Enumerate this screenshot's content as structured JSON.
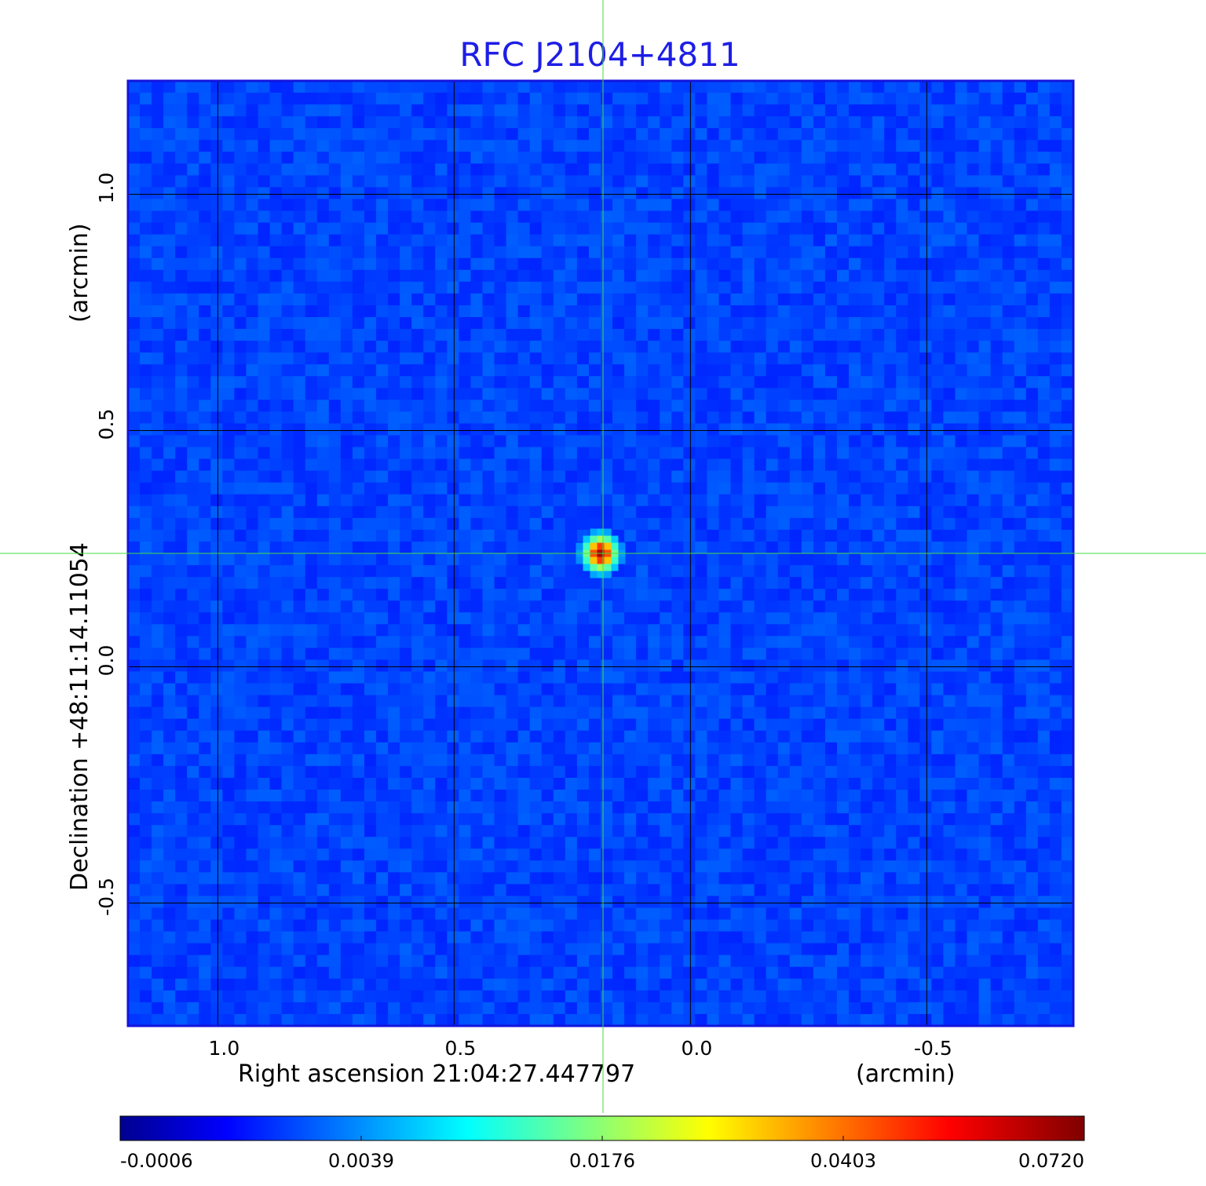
{
  "chart_data": {
    "type": "heatmap",
    "title": "RFC J2104+4811",
    "xlabel": "Right ascension  21:04:27.447797",
    "xunit": "(arcmin)",
    "ylabel": "Declination  +48:11:14.11054",
    "yunit": "(arcmin)",
    "xlim": [
      1.19,
      -0.81
    ],
    "ylim": [
      -0.76,
      1.24
    ],
    "xticks": [
      {
        "value": 1.0,
        "label": "1.0"
      },
      {
        "value": 0.5,
        "label": "0.5"
      },
      {
        "value": 0.0,
        "label": "0.0"
      },
      {
        "value": -0.5,
        "label": "-0.5"
      }
    ],
    "yticks": [
      {
        "value": 1.0,
        "label": "1.0"
      },
      {
        "value": 0.5,
        "label": "0.5"
      },
      {
        "value": 0.0,
        "label": "0.0"
      },
      {
        "value": -0.5,
        "label": "-0.5"
      }
    ],
    "grid": true,
    "crosshair": {
      "x": 0.185,
      "y": 0.24,
      "color": "#44dd44"
    },
    "source_peak": {
      "x": 0.19,
      "y": 0.24,
      "peak_value": 0.072
    },
    "background_level": 0.0,
    "colormap": {
      "name": "jet",
      "stops": [
        "#00008f",
        "#0000ff",
        "#00ffff",
        "#ffff00",
        "#ff0000",
        "#800000"
      ]
    },
    "colorbar": {
      "orientation": "horizontal",
      "ticks": [
        "-0.0006",
        "0.0039",
        "0.0176",
        "0.0403",
        "0.0720"
      ],
      "min": -0.0006,
      "max": 0.072
    },
    "title_color": "#1e1ee6",
    "frame_color": "#1414dc"
  }
}
